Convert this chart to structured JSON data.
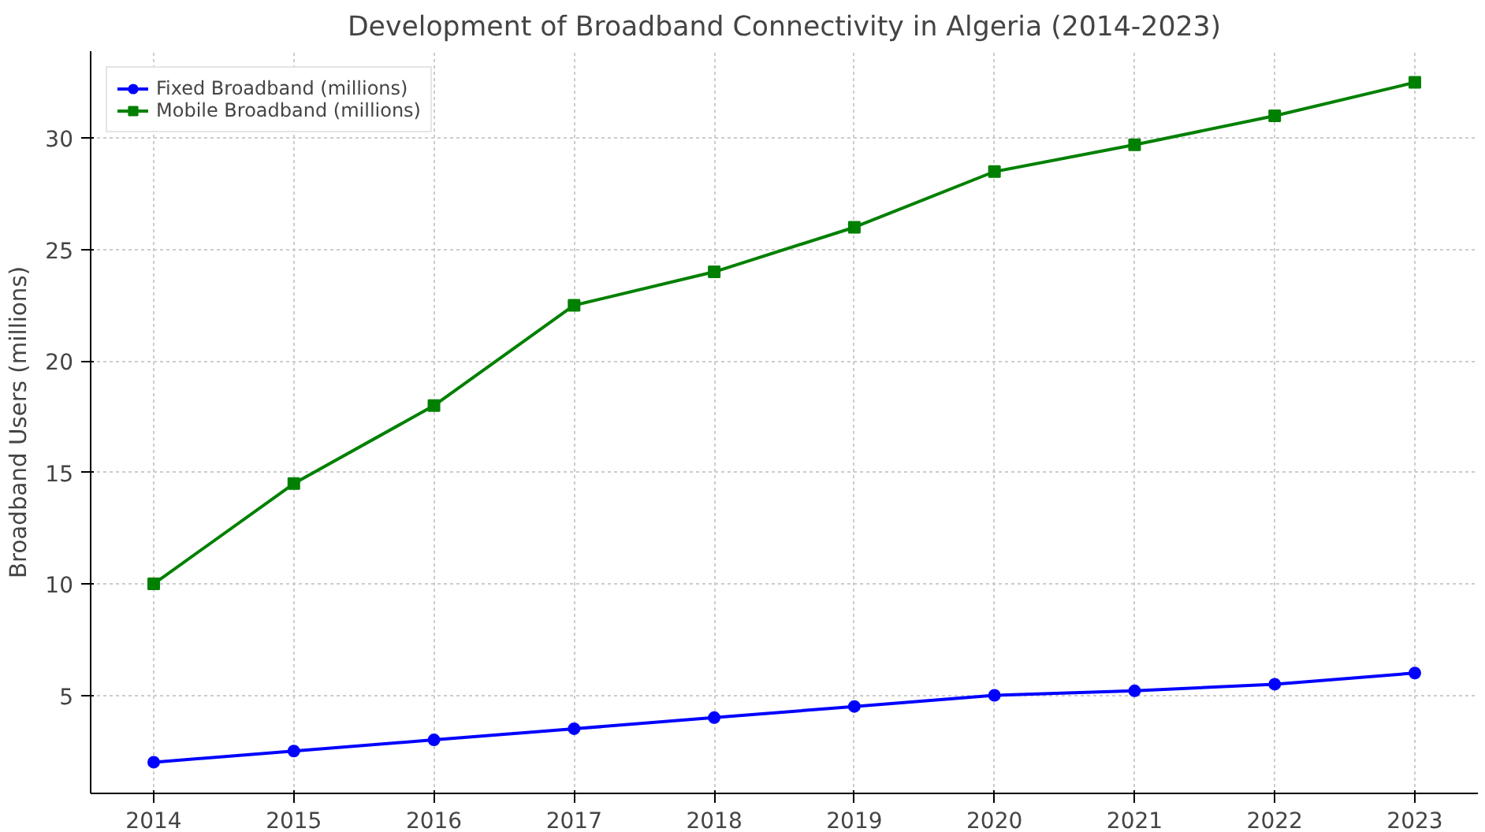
{
  "chart_data": {
    "type": "line",
    "title": "Development of Broadband Connectivity in Algeria (2014-2023)",
    "ylabel": "Broadband Users (millions)",
    "x": [
      2014,
      2015,
      2016,
      2017,
      2018,
      2019,
      2020,
      2021,
      2022,
      2023
    ],
    "series": [
      {
        "name": "Fixed Broadband (millions)",
        "color": "#0000ff",
        "marker": "circle",
        "values": [
          2.0,
          2.5,
          3.0,
          3.5,
          4.0,
          4.5,
          5.0,
          5.2,
          5.5,
          6.0
        ]
      },
      {
        "name": "Mobile Broadband (millions)",
        "color": "#008000",
        "marker": "square",
        "values": [
          10,
          14.5,
          18,
          22.5,
          24,
          26,
          28.5,
          29.7,
          31,
          32.5
        ]
      }
    ],
    "xlim": [
      2013.55,
      2023.45
    ],
    "ylim": [
      0.6,
      33.9
    ],
    "xticks": [
      2014,
      2015,
      2016,
      2017,
      2018,
      2019,
      2020,
      2021,
      2022,
      2023
    ],
    "yticks": [
      5,
      10,
      15,
      20,
      25,
      30
    ],
    "grid": true,
    "legend": "top left",
    "line_style": "solid"
  }
}
